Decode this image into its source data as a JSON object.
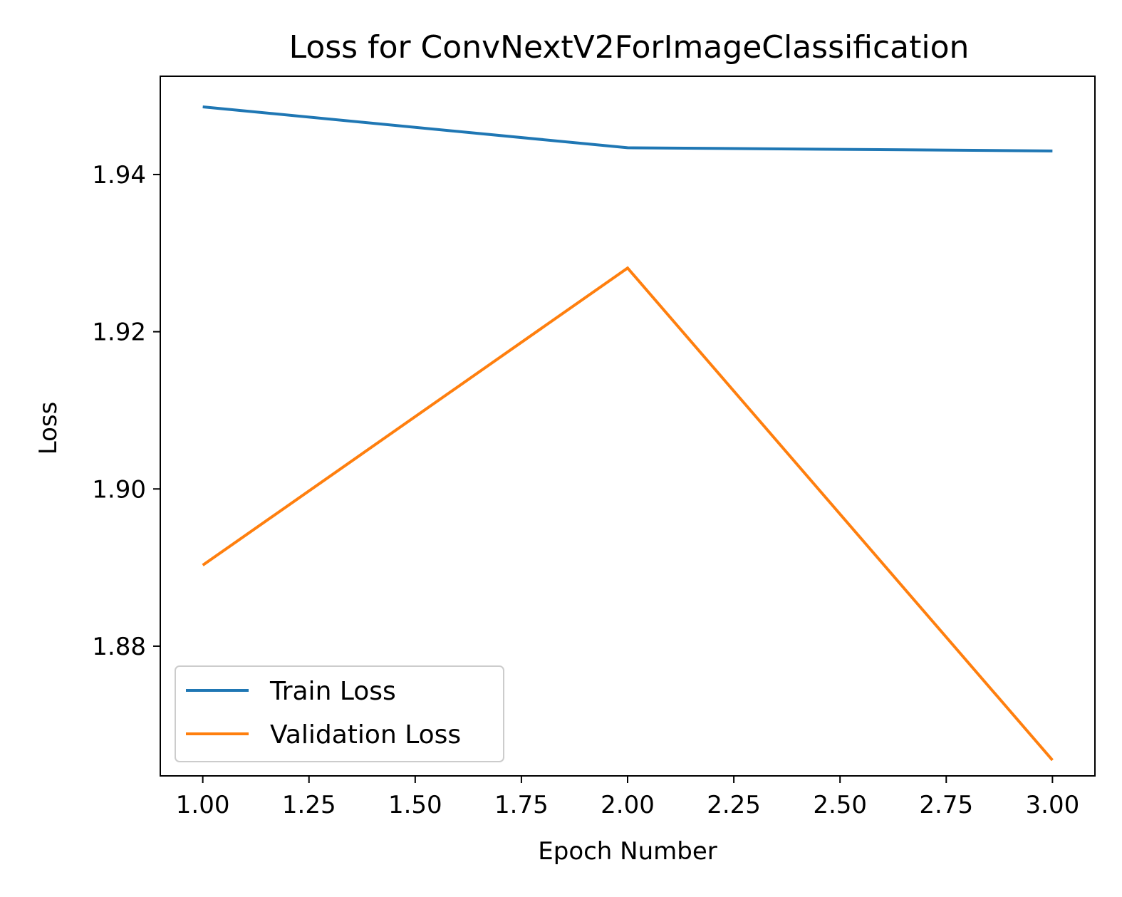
{
  "chart_data": {
    "type": "line",
    "title": "Loss for ConvNextV2ForImageClassification",
    "xlabel": "Epoch Number",
    "ylabel": "Loss",
    "x": [
      1,
      2,
      3
    ],
    "xlim": [
      0.9,
      3.1
    ],
    "ylim": [
      1.8635,
      1.9525
    ],
    "xticks": [
      1.0,
      1.25,
      1.5,
      1.75,
      2.0,
      2.25,
      2.5,
      2.75,
      3.0
    ],
    "xtick_labels": [
      "1.00",
      "1.25",
      "1.50",
      "1.75",
      "2.00",
      "2.25",
      "2.50",
      "2.75",
      "3.00"
    ],
    "yticks": [
      1.88,
      1.9,
      1.92,
      1.94
    ],
    "ytick_labels": [
      "1.88",
      "1.90",
      "1.92",
      "1.94"
    ],
    "grid": false,
    "legend_position": "lower-left",
    "series": [
      {
        "name": "Train Loss",
        "values": [
          1.9486,
          1.9434,
          1.943
        ],
        "color": "#1f77b4"
      },
      {
        "name": "Validation Loss",
        "values": [
          1.8903,
          1.9281,
          1.8655
        ],
        "color": "#ff7f0e"
      }
    ]
  }
}
